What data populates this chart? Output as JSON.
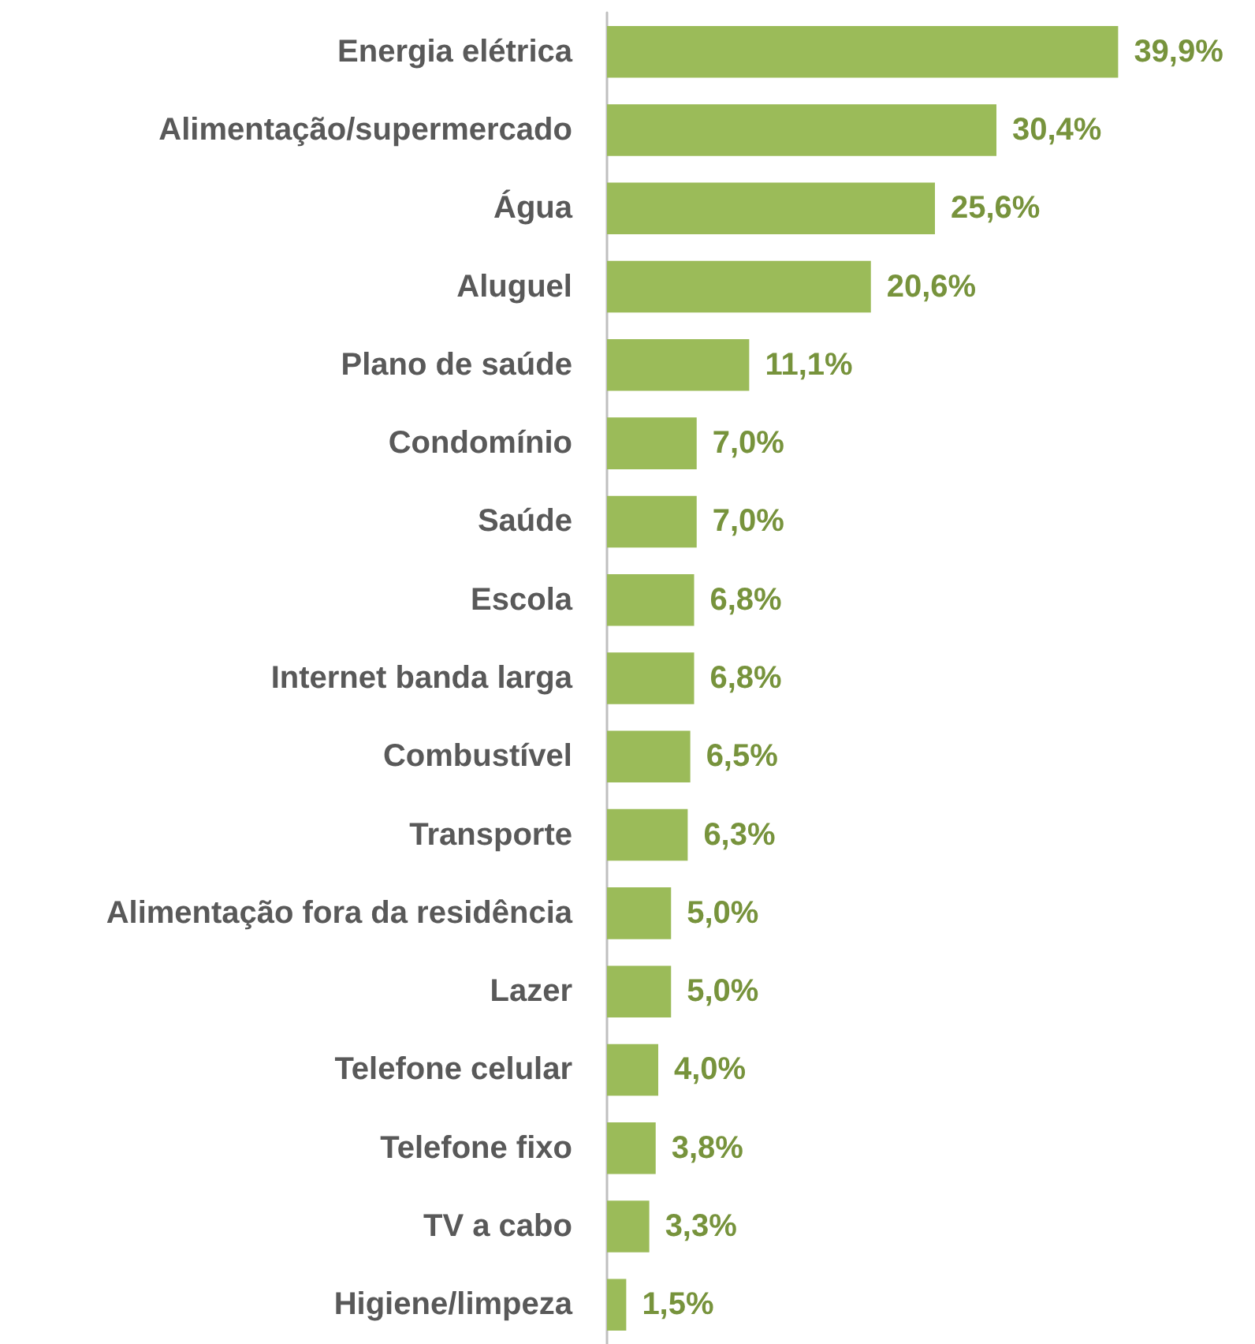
{
  "chart_data": {
    "type": "bar",
    "orientation": "horizontal",
    "categories": [
      "Energia elétrica",
      "Alimentação/supermercado",
      "Água",
      "Aluguel",
      "Plano de saúde",
      "Condomínio",
      "Saúde",
      "Escola",
      "Internet banda larga",
      "Combustível",
      "Transporte",
      "Alimentação fora da residência",
      "Lazer",
      "Telefone celular",
      "Telefone fixo",
      "TV a cabo",
      "Higiene/limpeza"
    ],
    "values": [
      39.9,
      30.4,
      25.6,
      20.6,
      11.1,
      7.0,
      7.0,
      6.8,
      6.8,
      6.5,
      6.3,
      5.0,
      5.0,
      4.0,
      3.8,
      3.3,
      1.5
    ],
    "value_labels": [
      "39,9%",
      "30,4%",
      "25,6%",
      "20,6%",
      "11,1%",
      "7,0%",
      "7,0%",
      "6,8%",
      "6,8%",
      "6,5%",
      "6,3%",
      "5,0%",
      "5,0%",
      "4,0%",
      "3,8%",
      "3,3%",
      "1,5%"
    ],
    "color": "#9bbb59"
  }
}
